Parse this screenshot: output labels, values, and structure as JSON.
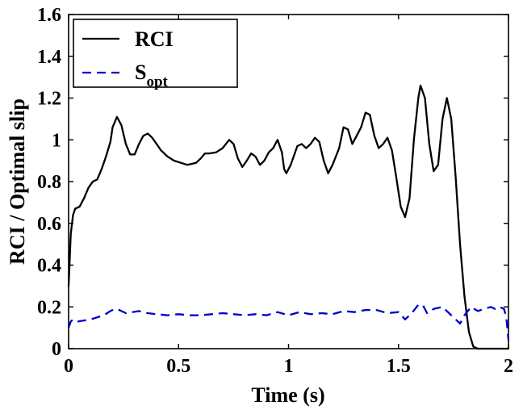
{
  "chart_data": {
    "type": "line",
    "title": "",
    "xlabel": "Time (s)",
    "ylabel": "RCI / Optimal slip",
    "xlim": [
      0,
      2
    ],
    "ylim": [
      0,
      1.6
    ],
    "x_ticks": [
      0,
      0.5,
      1,
      1.5,
      2
    ],
    "x_tick_labels": [
      "0",
      "0.5",
      "1",
      "1.5",
      "2"
    ],
    "y_ticks": [
      0,
      0.2,
      0.4,
      0.6,
      0.8,
      1,
      1.2,
      1.4,
      1.6
    ],
    "y_tick_labels": [
      "0",
      "0.2",
      "0.4",
      "0.6",
      "0.8",
      "1",
      "1.2",
      "1.4",
      "1.6"
    ],
    "grid": false,
    "legend_position": "top-left",
    "series": [
      {
        "name": "RCI",
        "legend_main": "RCI",
        "legend_sub": "",
        "color": "#000000",
        "style": "solid",
        "points": [
          [
            0,
            0.3
          ],
          [
            0.01,
            0.55
          ],
          [
            0.02,
            0.64
          ],
          [
            0.03,
            0.67
          ],
          [
            0.05,
            0.68
          ],
          [
            0.07,
            0.72
          ],
          [
            0.09,
            0.77
          ],
          [
            0.11,
            0.8
          ],
          [
            0.13,
            0.81
          ],
          [
            0.15,
            0.86
          ],
          [
            0.17,
            0.92
          ],
          [
            0.19,
            0.99
          ],
          [
            0.2,
            1.06
          ],
          [
            0.22,
            1.11
          ],
          [
            0.24,
            1.07
          ],
          [
            0.26,
            0.98
          ],
          [
            0.28,
            0.93
          ],
          [
            0.3,
            0.93
          ],
          [
            0.32,
            0.98
          ],
          [
            0.34,
            1.02
          ],
          [
            0.36,
            1.03
          ],
          [
            0.38,
            1.01
          ],
          [
            0.4,
            0.98
          ],
          [
            0.42,
            0.95
          ],
          [
            0.45,
            0.92
          ],
          [
            0.48,
            0.9
          ],
          [
            0.51,
            0.89
          ],
          [
            0.54,
            0.88
          ],
          [
            0.56,
            0.885
          ],
          [
            0.58,
            0.89
          ],
          [
            0.6,
            0.91
          ],
          [
            0.62,
            0.935
          ],
          [
            0.64,
            0.935
          ],
          [
            0.67,
            0.94
          ],
          [
            0.7,
            0.96
          ],
          [
            0.73,
            1.0
          ],
          [
            0.75,
            0.98
          ],
          [
            0.77,
            0.91
          ],
          [
            0.79,
            0.87
          ],
          [
            0.81,
            0.9
          ],
          [
            0.83,
            0.935
          ],
          [
            0.85,
            0.92
          ],
          [
            0.87,
            0.88
          ],
          [
            0.89,
            0.9
          ],
          [
            0.91,
            0.94
          ],
          [
            0.93,
            0.96
          ],
          [
            0.95,
            1.0
          ],
          [
            0.97,
            0.94
          ],
          [
            0.98,
            0.86
          ],
          [
            0.99,
            0.84
          ],
          [
            1.01,
            0.88
          ],
          [
            1.04,
            0.97
          ],
          [
            1.06,
            0.98
          ],
          [
            1.08,
            0.96
          ],
          [
            1.1,
            0.98
          ],
          [
            1.12,
            1.01
          ],
          [
            1.14,
            0.99
          ],
          [
            1.16,
            0.9
          ],
          [
            1.18,
            0.84
          ],
          [
            1.2,
            0.88
          ],
          [
            1.23,
            0.96
          ],
          [
            1.25,
            1.06
          ],
          [
            1.27,
            1.05
          ],
          [
            1.29,
            0.98
          ],
          [
            1.31,
            1.02
          ],
          [
            1.33,
            1.06
          ],
          [
            1.35,
            1.13
          ],
          [
            1.37,
            1.12
          ],
          [
            1.39,
            1.02
          ],
          [
            1.41,
            0.96
          ],
          [
            1.43,
            0.98
          ],
          [
            1.45,
            1.01
          ],
          [
            1.47,
            0.95
          ],
          [
            1.49,
            0.82
          ],
          [
            1.51,
            0.68
          ],
          [
            1.53,
            0.63
          ],
          [
            1.55,
            0.72
          ],
          [
            1.57,
            1.0
          ],
          [
            1.59,
            1.2
          ],
          [
            1.6,
            1.26
          ],
          [
            1.62,
            1.2
          ],
          [
            1.64,
            0.98
          ],
          [
            1.66,
            0.85
          ],
          [
            1.68,
            0.88
          ],
          [
            1.7,
            1.1
          ],
          [
            1.72,
            1.2
          ],
          [
            1.74,
            1.1
          ],
          [
            1.76,
            0.82
          ],
          [
            1.78,
            0.5
          ],
          [
            1.8,
            0.25
          ],
          [
            1.82,
            0.08
          ],
          [
            1.84,
            0.01
          ],
          [
            1.86,
            0.0
          ],
          [
            2.0,
            0.0
          ]
        ]
      },
      {
        "name": "S_opt",
        "legend_main": "S",
        "legend_sub": "opt",
        "color": "#0000cc",
        "style": "dashed",
        "points": [
          [
            0,
            0.1
          ],
          [
            0.01,
            0.13
          ],
          [
            0.02,
            0.14
          ],
          [
            0.04,
            0.13
          ],
          [
            0.07,
            0.135
          ],
          [
            0.1,
            0.14
          ],
          [
            0.13,
            0.15
          ],
          [
            0.16,
            0.16
          ],
          [
            0.19,
            0.18
          ],
          [
            0.21,
            0.19
          ],
          [
            0.23,
            0.185
          ],
          [
            0.26,
            0.17
          ],
          [
            0.29,
            0.175
          ],
          [
            0.32,
            0.18
          ],
          [
            0.36,
            0.17
          ],
          [
            0.4,
            0.165
          ],
          [
            0.45,
            0.16
          ],
          [
            0.5,
            0.165
          ],
          [
            0.55,
            0.16
          ],
          [
            0.6,
            0.16
          ],
          [
            0.65,
            0.165
          ],
          [
            0.7,
            0.17
          ],
          [
            0.75,
            0.165
          ],
          [
            0.8,
            0.16
          ],
          [
            0.85,
            0.165
          ],
          [
            0.9,
            0.16
          ],
          [
            0.95,
            0.175
          ],
          [
            1.0,
            0.16
          ],
          [
            1.05,
            0.175
          ],
          [
            1.1,
            0.165
          ],
          [
            1.15,
            0.17
          ],
          [
            1.2,
            0.165
          ],
          [
            1.25,
            0.18
          ],
          [
            1.3,
            0.175
          ],
          [
            1.35,
            0.185
          ],
          [
            1.4,
            0.185
          ],
          [
            1.45,
            0.17
          ],
          [
            1.5,
            0.175
          ],
          [
            1.53,
            0.14
          ],
          [
            1.56,
            0.17
          ],
          [
            1.59,
            0.21
          ],
          [
            1.61,
            0.21
          ],
          [
            1.63,
            0.17
          ],
          [
            1.66,
            0.19
          ],
          [
            1.7,
            0.2
          ],
          [
            1.73,
            0.17
          ],
          [
            1.76,
            0.14
          ],
          [
            1.78,
            0.12
          ],
          [
            1.8,
            0.16
          ],
          [
            1.83,
            0.2
          ],
          [
            1.86,
            0.18
          ],
          [
            1.89,
            0.19
          ],
          [
            1.92,
            0.2
          ],
          [
            1.94,
            0.19
          ],
          [
            1.96,
            0.2
          ],
          [
            1.98,
            0.19
          ],
          [
            1.99,
            0.15
          ],
          [
            2.0,
            0.04
          ]
        ]
      }
    ]
  }
}
